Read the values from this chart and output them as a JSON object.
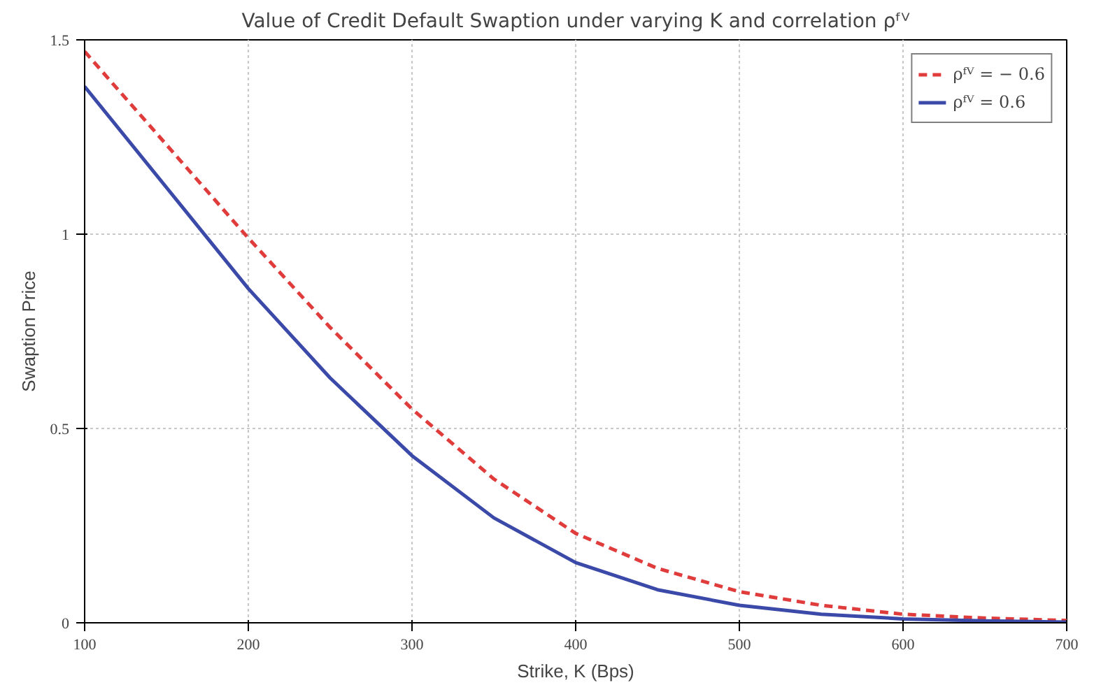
{
  "chart_data": {
    "type": "line",
    "title": "Value of Credit Default Swaption under varying K and correlation ρᶠⱽ",
    "xlabel": "Strike, K (Bps)",
    "ylabel": "Swaption Price",
    "x": [
      100,
      150,
      200,
      250,
      300,
      350,
      400,
      450,
      500,
      550,
      600,
      650,
      700
    ],
    "series": [
      {
        "name": "ρᶠⱽ = − 0.6",
        "color": "#e03c3c",
        "line_style": "dashed",
        "values": [
          1.47,
          1.23,
          0.99,
          0.76,
          0.55,
          0.37,
          0.23,
          0.14,
          0.08,
          0.045,
          0.022,
          0.012,
          0.006
        ]
      },
      {
        "name": "ρᶠⱽ = 0.6",
        "color": "#3b4aa8",
        "line_style": "solid",
        "values": [
          1.38,
          1.12,
          0.86,
          0.63,
          0.43,
          0.27,
          0.155,
          0.085,
          0.045,
          0.022,
          0.01,
          0.005,
          0.002
        ]
      }
    ],
    "xlim": [
      100,
      700
    ],
    "ylim": [
      0,
      1.5
    ],
    "xticks": [
      100,
      200,
      300,
      400,
      500,
      600,
      700
    ],
    "yticks": [
      0,
      0.5,
      1,
      1.5
    ],
    "grid": true,
    "legend": "top right",
    "marker": "none"
  }
}
